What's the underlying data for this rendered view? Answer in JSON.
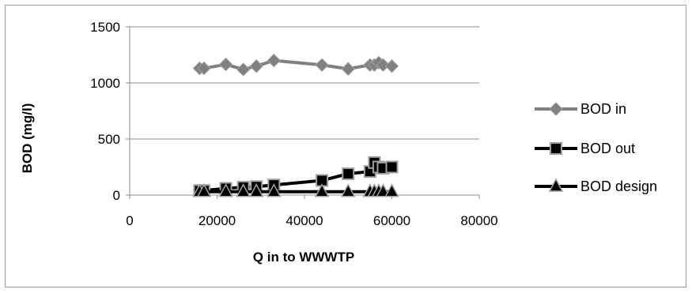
{
  "chart_data": {
    "type": "scatter",
    "title": "",
    "xlabel": "Q in to WWWTP",
    "ylabel": "BOD (mg/l)",
    "xlim": [
      0,
      80000
    ],
    "ylim": [
      0,
      1500
    ],
    "x_ticks": [
      0,
      20000,
      40000,
      60000,
      80000
    ],
    "y_ticks": [
      0,
      500,
      1000,
      1500
    ],
    "grid": "horizontal",
    "legend_position": "right",
    "series": [
      {
        "name": "BOD in",
        "marker": "diamond",
        "line_color": "#808080",
        "marker_color": "#808080",
        "x": [
          16000,
          17000,
          22000,
          26000,
          29000,
          33000,
          44000,
          50000,
          55000,
          56000,
          57000,
          58000,
          60000
        ],
        "y": [
          1130,
          1130,
          1165,
          1120,
          1150,
          1200,
          1160,
          1125,
          1160,
          1160,
          1180,
          1160,
          1150
        ]
      },
      {
        "name": "BOD out",
        "marker": "square",
        "line_color": "#000000",
        "marker_color": "#000000",
        "x": [
          16000,
          17000,
          22000,
          26000,
          29000,
          33000,
          44000,
          50000,
          55000,
          56000,
          57000,
          58000,
          60000
        ],
        "y": [
          40,
          40,
          60,
          70,
          75,
          90,
          130,
          190,
          210,
          290,
          250,
          240,
          250
        ]
      },
      {
        "name": "BOD design",
        "marker": "triangle",
        "line_color": "#000000",
        "marker_color": "#000000",
        "x": [
          16000,
          17000,
          22000,
          26000,
          29000,
          33000,
          44000,
          50000,
          55000,
          56000,
          57000,
          58000,
          60000
        ],
        "y": [
          30,
          30,
          30,
          30,
          30,
          30,
          30,
          30,
          30,
          30,
          30,
          30,
          30
        ]
      }
    ]
  }
}
